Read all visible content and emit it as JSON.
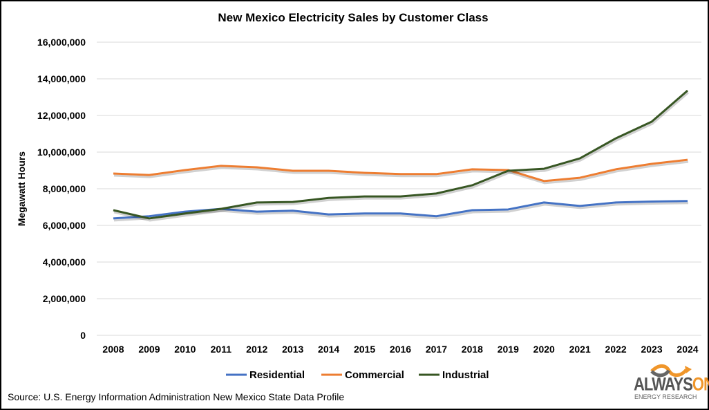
{
  "chart_data": {
    "type": "line",
    "title": "New Mexico Electricity Sales by Customer Class",
    "xlabel": "",
    "ylabel": "Megawatt Hours",
    "ylim": [
      0,
      16000000
    ],
    "yticks": [
      0,
      2000000,
      4000000,
      6000000,
      8000000,
      10000000,
      12000000,
      14000000,
      16000000
    ],
    "ytick_labels": [
      "0",
      "2,000,000",
      "4,000,000",
      "6,000,000",
      "8,000,000",
      "10,000,000",
      "12,000,000",
      "14,000,000",
      "16,000,000"
    ],
    "grid": "horizontal",
    "legend_position": "bottom",
    "categories": [
      "2008",
      "2009",
      "2010",
      "2011",
      "2012",
      "2013",
      "2014",
      "2015",
      "2016",
      "2017",
      "2018",
      "2019",
      "2020",
      "2021",
      "2022",
      "2023",
      "2024"
    ],
    "series": [
      {
        "name": "Residential",
        "color": "#4472C4",
        "values": [
          6380000,
          6500000,
          6750000,
          6900000,
          6750000,
          6800000,
          6600000,
          6650000,
          6650000,
          6500000,
          6830000,
          6870000,
          7250000,
          7060000,
          7250000,
          7300000,
          7330000
        ]
      },
      {
        "name": "Commercial",
        "color": "#ED7D31",
        "values": [
          8830000,
          8750000,
          9020000,
          9250000,
          9170000,
          8980000,
          8980000,
          8870000,
          8800000,
          8800000,
          9060000,
          9020000,
          8420000,
          8600000,
          9060000,
          9360000,
          9580000
        ]
      },
      {
        "name": "Industrial",
        "color": "#375623",
        "values": [
          6830000,
          6380000,
          6650000,
          6900000,
          7250000,
          7280000,
          7500000,
          7580000,
          7580000,
          7740000,
          8190000,
          8980000,
          9090000,
          9660000,
          10750000,
          11660000,
          13360000
        ]
      }
    ]
  },
  "source": "Source: U.S. Energy Information Administration New Mexico State Data Profile",
  "logo": {
    "line1_a": "ALWAYS",
    "line1_b": "ON",
    "line2": "ENERGY RESEARCH"
  }
}
